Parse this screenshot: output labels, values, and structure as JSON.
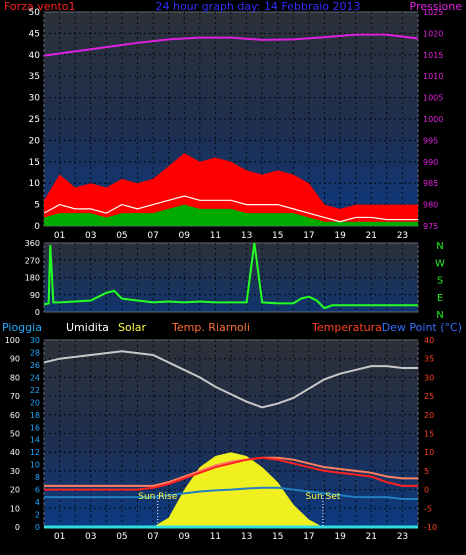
{
  "chart_data": [
    {
      "type": "line",
      "labels": {
        "wind": "Forza vento1",
        "title": "24 hour graph day: 14 Febbraio 2013",
        "pressure": "Pressione"
      },
      "colors": {
        "wind_label": "#ff2020",
        "title": "#3030ff",
        "pressure": "#e020e0",
        "gust": "#ff0000",
        "speed_fill": "#00aa00",
        "avg": "#ffffff"
      },
      "x_ticks": [
        "01",
        "03",
        "05",
        "07",
        "09",
        "11",
        "13",
        "15",
        "17",
        "19",
        "21",
        "23"
      ],
      "y_left": [
        0,
        5,
        10,
        15,
        20,
        25,
        30,
        35,
        40,
        45,
        50
      ],
      "y_right": [
        975,
        980,
        985,
        990,
        995,
        1000,
        1005,
        1010,
        1015,
        1020,
        1025
      ],
      "ylim_left": [
        0,
        50
      ],
      "ylim_right": [
        975,
        1025
      ],
      "series": [
        {
          "name": "Pressione",
          "unit": "right",
          "x": [
            0,
            2,
            4,
            6,
            8,
            10,
            12,
            14,
            16,
            18,
            20,
            22,
            24
          ],
          "values": [
            1014.8,
            1015.8,
            1016.8,
            1017.8,
            1018.6,
            1019.0,
            1019.0,
            1018.5,
            1018.6,
            1019.1,
            1019.7,
            1019.7,
            1018.8
          ]
        },
        {
          "name": "gust",
          "unit": "left",
          "x": [
            0,
            1,
            2,
            3,
            4,
            5,
            6,
            7,
            8,
            9,
            10,
            11,
            12,
            13,
            14,
            15,
            16,
            17,
            18,
            19,
            20,
            21,
            22,
            23,
            24
          ],
          "values": [
            6,
            12,
            9,
            10,
            9,
            11,
            10,
            11,
            14,
            17,
            15,
            16,
            15,
            13,
            12,
            13,
            12,
            10,
            5,
            4,
            5,
            5,
            5,
            5,
            5
          ]
        },
        {
          "name": "avg",
          "unit": "left",
          "x": [
            0,
            1,
            2,
            3,
            4,
            5,
            6,
            7,
            8,
            9,
            10,
            11,
            12,
            13,
            14,
            15,
            16,
            17,
            18,
            19,
            20,
            21,
            22,
            23,
            24
          ],
          "values": [
            3,
            5,
            4,
            4,
            3,
            5,
            4,
            5,
            6,
            7,
            6,
            6,
            6,
            5,
            5,
            5,
            4,
            3,
            2,
            1,
            2,
            2,
            1.5,
            1.5,
            1.5
          ]
        },
        {
          "name": "speed",
          "unit": "left",
          "x": [
            0,
            1,
            2,
            3,
            4,
            5,
            6,
            7,
            8,
            9,
            10,
            11,
            12,
            13,
            14,
            15,
            16,
            17,
            18,
            19,
            20,
            21,
            22,
            23,
            24
          ],
          "values": [
            2,
            3,
            3,
            3,
            2,
            3,
            3,
            3,
            4,
            5,
            4,
            4,
            4,
            3,
            3,
            3,
            3,
            2,
            1,
            1,
            1,
            1,
            1,
            1,
            1
          ]
        }
      ]
    },
    {
      "type": "line",
      "labels": {
        "directions": [
          "N",
          "W",
          "S",
          "E",
          "N"
        ]
      },
      "colors": {
        "line": "#22ff22",
        "directions": "#22ee22"
      },
      "x_ticks": [
        "01",
        "03",
        "05",
        "07",
        "09",
        "11",
        "13",
        "15",
        "17",
        "19",
        "21",
        "23"
      ],
      "y_left": [
        0,
        90,
        180,
        270,
        360
      ],
      "ylim": [
        0,
        360
      ],
      "series": [
        {
          "name": "direzione",
          "x": [
            0,
            0.3,
            0.4,
            0.6,
            1,
            2,
            3,
            3.5,
            4,
            4.5,
            5,
            6,
            7,
            8,
            9,
            10,
            11,
            12,
            13,
            13.5,
            14,
            15,
            16,
            16.5,
            17,
            17.5,
            18,
            18.5,
            24
          ],
          "values": [
            40,
            45,
            350,
            50,
            50,
            55,
            60,
            80,
            100,
            110,
            70,
            60,
            50,
            55,
            50,
            55,
            50,
            50,
            50,
            360,
            50,
            45,
            45,
            70,
            80,
            60,
            20,
            35,
            35
          ]
        }
      ]
    },
    {
      "type": "line",
      "labels": {
        "rain": "Pioggia",
        "humidity": "Umidita",
        "solar": "Solar",
        "temp_box": "Temp. Riarnoli",
        "temperature": "Temperatura",
        "dew": "Dew Point (°C)",
        "sunrise": "Sun Rise",
        "sunset": "Sun Set"
      },
      "colors": {
        "rain": "#22aaff",
        "humidity": "#ffffff",
        "solar": "#ffff40",
        "temp_box": "#ff7030",
        "temperature": "#ff4020",
        "dew": "#3070ff",
        "hum_line": "#c8c8c8",
        "temp_line": "#ff2020",
        "temp2_line": "#ff8060",
        "dew_line": "#2080c0",
        "solar_fill": "#f0f020",
        "sun_labels": "#ffff40"
      },
      "x_ticks": [
        "01",
        "03",
        "05",
        "07",
        "09",
        "11",
        "13",
        "15",
        "17",
        "19",
        "21",
        "23"
      ],
      "y_left": [
        0,
        10,
        20,
        30,
        40,
        50,
        60,
        70,
        80,
        90,
        100
      ],
      "y_mid": [
        0,
        2,
        4,
        6,
        8,
        10,
        12,
        14,
        16,
        18,
        20,
        22,
        24,
        26,
        28,
        30
      ],
      "y_right": [
        -10,
        -5,
        0,
        5,
        10,
        15,
        20,
        25,
        30,
        35,
        40
      ],
      "ylim_left": [
        0,
        100
      ],
      "ylim_right": [
        -10,
        40
      ],
      "sunrise_hour": 7.3,
      "sunset_hour": 17.9,
      "series": [
        {
          "name": "Umidita",
          "unit": "left",
          "x": [
            0,
            1,
            2,
            3,
            4,
            5,
            6,
            7,
            8,
            9,
            10,
            11,
            12,
            13,
            14,
            15,
            16,
            17,
            18,
            19,
            20,
            21,
            22,
            23,
            24
          ],
          "values": [
            88,
            90,
            91,
            92,
            93,
            94,
            93,
            92,
            88,
            84,
            80,
            75,
            71,
            67,
            64,
            66,
            69,
            74,
            79,
            82,
            84,
            86,
            86,
            85,
            85
          ]
        },
        {
          "name": "Temperatura",
          "unit": "right",
          "x": [
            0,
            1,
            2,
            3,
            4,
            5,
            6,
            7,
            8,
            9,
            10,
            11,
            12,
            13,
            14,
            15,
            16,
            17,
            18,
            19,
            20,
            21,
            22,
            23,
            24
          ],
          "values": [
            0,
            0,
            0,
            0,
            0,
            0,
            0,
            0.5,
            1.5,
            3,
            4.5,
            6,
            7,
            8,
            8.5,
            8,
            7,
            6,
            5,
            4.5,
            4,
            3.5,
            2,
            1,
            1
          ]
        },
        {
          "name": "Temp. Riarnoli",
          "unit": "right",
          "x": [
            0,
            1,
            2,
            3,
            4,
            5,
            6,
            7,
            8,
            9,
            10,
            11,
            12,
            13,
            14,
            15,
            16,
            17,
            18,
            19,
            20,
            21,
            22,
            23,
            24
          ],
          "values": [
            1,
            1,
            1,
            1,
            1,
            1,
            1,
            1,
            2,
            3.5,
            5,
            6.5,
            7.5,
            8,
            8.5,
            8.5,
            8,
            7,
            6,
            5.5,
            5,
            4.5,
            3.5,
            3,
            3
          ]
        },
        {
          "name": "Dew Point",
          "unit": "right",
          "x": [
            0,
            1,
            2,
            3,
            4,
            5,
            6,
            7,
            8,
            9,
            10,
            11,
            12,
            13,
            14,
            15,
            16,
            17,
            18,
            19,
            20,
            21,
            22,
            23,
            24
          ],
          "values": [
            -2,
            -2,
            -2,
            -2,
            -2,
            -2,
            -2,
            -2,
            -1.5,
            -1,
            -0.5,
            -0.2,
            0,
            0.3,
            0.5,
            0.5,
            0,
            -0.5,
            -1,
            -1.5,
            -2,
            -2,
            -2,
            -2.5,
            -2.5
          ]
        },
        {
          "name": "Solar",
          "unit": "left",
          "x": [
            7,
            8,
            9,
            10,
            11,
            12,
            13,
            14,
            15,
            16,
            17,
            17.9
          ],
          "values": [
            0,
            5,
            20,
            32,
            38,
            40,
            38,
            32,
            24,
            12,
            4,
            0
          ]
        },
        {
          "name": "Pioggia",
          "unit": "mid",
          "x": [
            0,
            24
          ],
          "values": [
            0,
            0
          ]
        }
      ]
    }
  ]
}
